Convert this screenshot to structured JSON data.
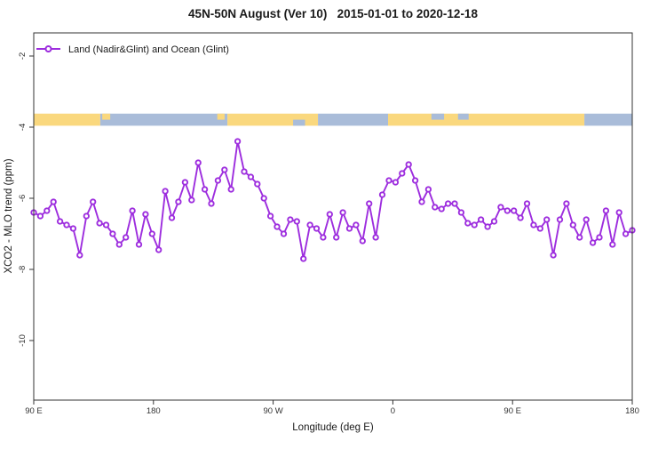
{
  "chart_data": {
    "type": "line",
    "title": "45N-50N August (Ver 10)   2015-01-01 to 2020-12-18",
    "xlabel": "Longitude (deg E)",
    "ylabel": "XCO2 - MLO trend (ppm)",
    "legend_label": "Land (Nadir&Glint) and Ocean (Glint)",
    "legend_position": "top-left",
    "grid": false,
    "ylim": [
      -11.75,
      -1.35
    ],
    "x_axis": {
      "description": "longitude wrapping eastward from 90E to 180 (450 deg span)",
      "ticks": [
        {
          "offset_deg": 0,
          "label": "90 E"
        },
        {
          "offset_deg": 90,
          "label": "180"
        },
        {
          "offset_deg": 180,
          "label": "90 W"
        },
        {
          "offset_deg": 270,
          "label": "0"
        },
        {
          "offset_deg": 360,
          "label": "90 E"
        },
        {
          "offset_deg": 450,
          "label": "180"
        }
      ]
    },
    "y_ticks": [
      {
        "value": -2,
        "label": "-2"
      },
      {
        "value": -4,
        "label": "-4"
      },
      {
        "value": -6,
        "label": "-6"
      },
      {
        "value": -8,
        "label": "-8"
      },
      {
        "value": -10,
        "label": "-10"
      }
    ],
    "colors": {
      "series": "#9D2DDE",
      "marker_fill": "#ffffff",
      "land_band": "#FAD87E",
      "ocean_band": "#A9BCD9",
      "axis": "#333333",
      "background": "#ffffff"
    },
    "land_ocean_band": {
      "value_top": -3.62,
      "value_bottom": -3.96,
      "segments": [
        {
          "from_deg": 0,
          "to_deg": 50,
          "type": "land"
        },
        {
          "from_deg": 50,
          "to_deg": 145.6,
          "type": "ocean"
        },
        {
          "from_deg": 145.6,
          "to_deg": 213.7,
          "type": "land"
        },
        {
          "from_deg": 213.7,
          "to_deg": 266.4,
          "type": "ocean"
        },
        {
          "from_deg": 266.4,
          "to_deg": 414,
          "type": "land"
        },
        {
          "from_deg": 414,
          "to_deg": 450,
          "type": "ocean"
        }
      ],
      "details": [
        {
          "from_deg": 51.5,
          "to_deg": 57.5,
          "type": "land",
          "pos": "top"
        },
        {
          "from_deg": 138,
          "to_deg": 143.5,
          "type": "land",
          "pos": "top"
        },
        {
          "from_deg": 195,
          "to_deg": 204,
          "type": "ocean",
          "pos": "bottom"
        },
        {
          "from_deg": 299,
          "to_deg": 308.5,
          "type": "ocean",
          "pos": "top"
        },
        {
          "from_deg": 319,
          "to_deg": 327,
          "type": "ocean",
          "pos": "top"
        }
      ]
    },
    "series": [
      {
        "name": "Land (Nadir&Glint) and Ocean (Glint)",
        "x_start": "90E",
        "x_span_deg": [
          0,
          450
        ],
        "values": [
          -6.4,
          -6.5,
          -6.35,
          -6.1,
          -6.65,
          -6.75,
          -6.85,
          -7.6,
          -6.5,
          -6.1,
          -6.7,
          -6.75,
          -7.0,
          -7.3,
          -7.1,
          -6.35,
          -7.3,
          -6.45,
          -7.0,
          -7.45,
          -5.8,
          -6.55,
          -6.1,
          -5.55,
          -6.05,
          -5.0,
          -5.75,
          -6.15,
          -5.5,
          -5.2,
          -5.75,
          -4.4,
          -5.25,
          -5.4,
          -5.6,
          -6.0,
          -6.5,
          -6.8,
          -7.0,
          -6.6,
          -6.65,
          -7.7,
          -6.75,
          -6.85,
          -7.1,
          -6.45,
          -7.1,
          -6.4,
          -6.85,
          -6.75,
          -7.2,
          -6.15,
          -7.1,
          -5.9,
          -5.5,
          -5.55,
          -5.3,
          -5.05,
          -5.5,
          -6.1,
          -5.75,
          -6.25,
          -6.3,
          -6.15,
          -6.15,
          -6.4,
          -6.7,
          -6.75,
          -6.6,
          -6.8,
          -6.65,
          -6.25,
          -6.35,
          -6.35,
          -6.55,
          -6.15,
          -6.75,
          -6.85,
          -6.6,
          -7.6,
          -6.6,
          -6.15,
          -6.75,
          -7.1,
          -6.6,
          -7.25,
          -7.1,
          -6.35,
          -7.3,
          -6.4,
          -7.0,
          -6.9
        ]
      }
    ]
  }
}
